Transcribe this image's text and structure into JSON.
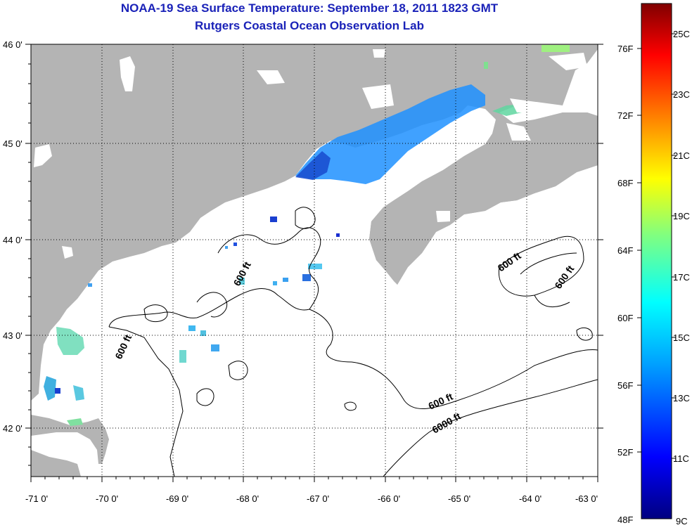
{
  "title": "NOAA-19 Sea Surface Temperature:  September 18, 2011 1823 GMT",
  "subtitle": "Rutgers Coastal Ocean Observation Lab",
  "map": {
    "lon_ticks": [
      "-71 0'",
      "-70 0'",
      "-69 0'",
      "-68 0'",
      "-67 0'",
      "-66 0'",
      "-65 0'",
      "-64 0'",
      "-63 0'"
    ],
    "lat_ticks": [
      "46 0'",
      "45 0'",
      "44 0'",
      "43 0'",
      "42 0'"
    ],
    "lon_range": [
      -71,
      -63
    ],
    "lat_range": [
      41.5,
      46
    ],
    "grid": "dotted",
    "land_color": "#b4b4b4",
    "ocean_color": "#ffffff",
    "contour_labels": [
      "600 ft",
      "600 ft",
      "600 ft",
      "600 ft",
      "600 ft",
      "6000 ft"
    ]
  },
  "colorbar": {
    "f_labels": [
      "76F",
      "72F",
      "68F",
      "64F",
      "60F",
      "56F",
      "52F",
      "48F"
    ],
    "c_labels": [
      "25C",
      "23C",
      "21C",
      "19C",
      "17C",
      "15C",
      "13C",
      "11C",
      "9C"
    ],
    "colors": [
      "#000080",
      "#0000ff",
      "#00a0ff",
      "#00ffff",
      "#80ff80",
      "#ffff00",
      "#ff8000",
      "#ff0000",
      "#800000"
    ]
  }
}
